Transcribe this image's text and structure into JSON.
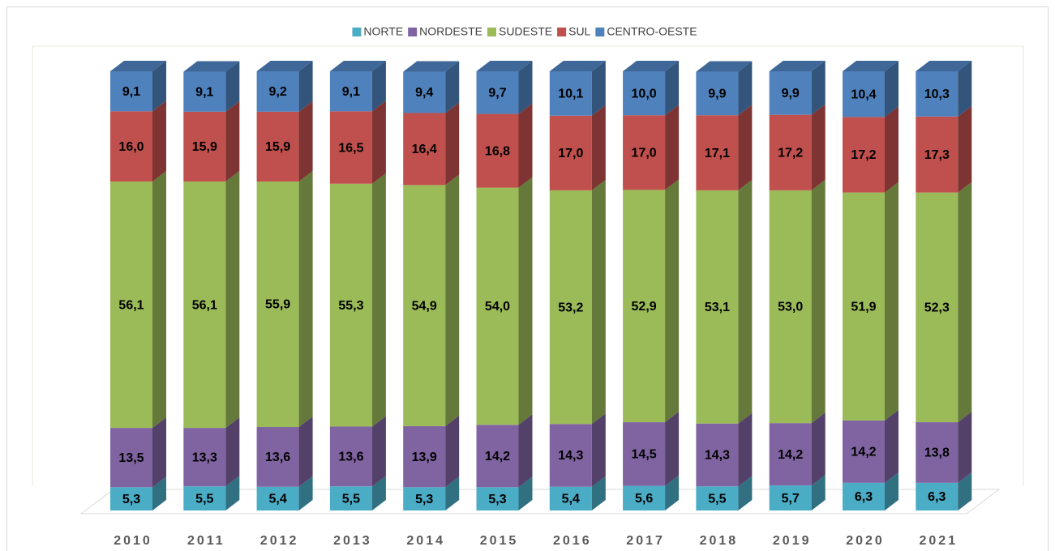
{
  "chart_data": {
    "type": "bar",
    "stacked": true,
    "legend": "top",
    "categories": [
      "2010",
      "2011",
      "2012",
      "2013",
      "2014",
      "2015",
      "2016",
      "2017",
      "2018",
      "2019",
      "2020",
      "2021"
    ],
    "series": [
      {
        "name": "NORTE",
        "color": "#4bacc6",
        "values": [
          5.3,
          5.5,
          5.4,
          5.5,
          5.3,
          5.3,
          5.4,
          5.6,
          5.5,
          5.7,
          6.3,
          6.3
        ],
        "value_labels": [
          "5,3",
          "5,5",
          "5,4",
          "5,5",
          "5,3",
          "5,3",
          "5,4",
          "5,6",
          "5,5",
          "5,7",
          "6,3",
          "6,3"
        ]
      },
      {
        "name": "NORDESTE",
        "color": "#8064a2",
        "values": [
          13.5,
          13.3,
          13.6,
          13.6,
          13.9,
          14.2,
          14.3,
          14.5,
          14.3,
          14.2,
          14.2,
          13.8
        ],
        "value_labels": [
          "13,5",
          "13,3",
          "13,6",
          "13,6",
          "13,9",
          "14,2",
          "14,3",
          "14,5",
          "14,3",
          "14,2",
          "14,2",
          "13,8"
        ]
      },
      {
        "name": "SUDESTE",
        "color": "#9bbb59",
        "values": [
          56.1,
          56.1,
          55.9,
          55.3,
          54.9,
          54.0,
          53.2,
          52.9,
          53.1,
          53.0,
          51.9,
          52.3
        ],
        "value_labels": [
          "56,1",
          "56,1",
          "55,9",
          "55,3",
          "54,9",
          "54,0",
          "53,2",
          "52,9",
          "53,1",
          "53,0",
          "51,9",
          "52,3"
        ]
      },
      {
        "name": "SUL",
        "color": "#c0504d",
        "values": [
          16.0,
          15.9,
          15.9,
          16.5,
          16.4,
          16.8,
          17.0,
          17.0,
          17.1,
          17.2,
          17.2,
          17.3
        ],
        "value_labels": [
          "16,0",
          "15,9",
          "15,9",
          "16,5",
          "16,4",
          "16,8",
          "17,0",
          "17,0",
          "17,1",
          "17,2",
          "17,2",
          "17,3"
        ]
      },
      {
        "name": "CENTRO-OESTE",
        "color": "#4f81bd",
        "values": [
          9.1,
          9.1,
          9.2,
          9.1,
          9.4,
          9.7,
          10.1,
          10.0,
          9.9,
          9.9,
          10.4,
          10.3
        ],
        "value_labels": [
          "9,1",
          "9,1",
          "9,2",
          "9,1",
          "9,4",
          "9,7",
          "10,1",
          "10,0",
          "9,9",
          "9,9",
          "10,4",
          "10,3"
        ]
      }
    ]
  }
}
